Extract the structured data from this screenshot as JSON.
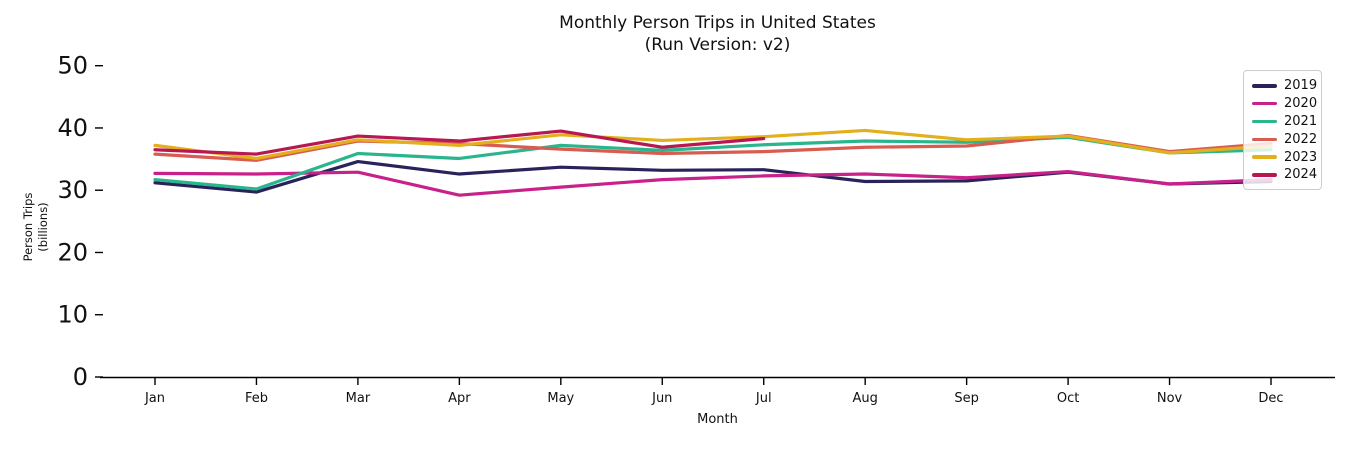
{
  "chart_data": {
    "type": "line",
    "title": "Monthly Person Trips in United States",
    "subtitle": "(Run Version: v2)",
    "xlabel": "Month",
    "ylabel_lines": [
      "Person Trips",
      "(billions)"
    ],
    "categories": [
      "Jan",
      "Feb",
      "Mar",
      "Apr",
      "May",
      "Jun",
      "Jul",
      "Aug",
      "Sep",
      "Oct",
      "Nov",
      "Dec"
    ],
    "yticks": [
      0,
      10,
      20,
      30,
      40,
      50
    ],
    "ylim": [
      0,
      51
    ],
    "grid": false,
    "legend_position": "upper right",
    "axis_color": "#000000",
    "text_color": "#111111",
    "background_color": "#ffffff",
    "series": [
      {
        "name": "2019",
        "color": "#29235c",
        "values": [
          31.2,
          29.7,
          34.6,
          32.6,
          33.7,
          33.2,
          33.3,
          31.4,
          31.5,
          32.9,
          31.0,
          31.4
        ]
      },
      {
        "name": "2020",
        "color": "#c9218a",
        "values": [
          32.7,
          32.6,
          32.9,
          29.2,
          30.5,
          31.7,
          32.3,
          32.6,
          32.0,
          33.0,
          31.0,
          31.7
        ]
      },
      {
        "name": "2021",
        "color": "#2ab58d",
        "values": [
          31.7,
          30.2,
          35.9,
          35.1,
          37.2,
          36.4,
          37.3,
          37.9,
          37.7,
          38.5,
          36.0,
          36.5
        ]
      },
      {
        "name": "2022",
        "color": "#d85c50",
        "values": [
          35.8,
          34.8,
          37.9,
          37.5,
          36.6,
          35.9,
          36.2,
          36.9,
          37.1,
          38.8,
          36.2,
          37.5
        ]
      },
      {
        "name": "2023",
        "color": "#e4af1d",
        "values": [
          37.2,
          35.1,
          38.1,
          37.2,
          38.9,
          38.0,
          38.6,
          39.6,
          38.1,
          38.7,
          36.0,
          37.1
        ]
      },
      {
        "name": "2024",
        "color": "#b81752",
        "values": [
          36.5,
          35.8,
          38.7,
          37.9,
          39.5,
          36.9,
          38.3,
          null,
          null,
          null,
          null,
          null
        ]
      }
    ]
  }
}
